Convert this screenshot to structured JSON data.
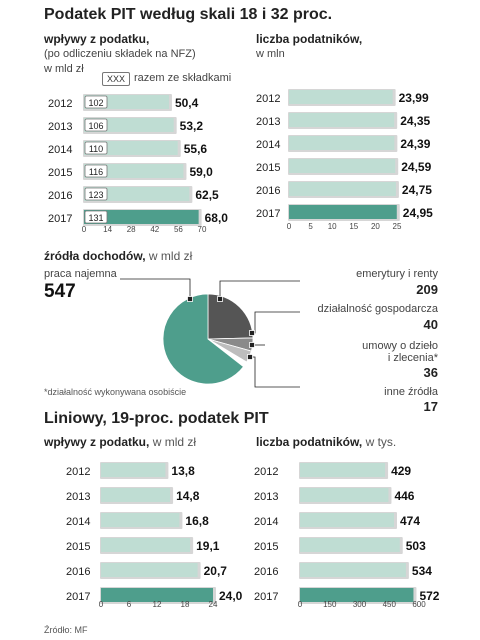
{
  "section1": {
    "title": "Podatek PIT według skali 18 i 32 proc.",
    "left_heading": "wpływy z podatku,",
    "left_note": "(po odliczeniu składek na NFZ)",
    "left_unit": "w mld zł",
    "legend_box": "XXX",
    "legend_label": "razem ze składkami",
    "right_heading": "liczba podatników,",
    "right_unit": "w mln"
  },
  "sources": {
    "heading": "źródła dochodów,",
    "unit": "w mld zł",
    "footnote": "*działalność wykonywana osobiście",
    "items": [
      {
        "label": "praca najemna",
        "value": "547"
      },
      {
        "label": "emerytury i renty",
        "value": "209"
      },
      {
        "label": "działalność gospodarcza",
        "value": "40"
      },
      {
        "label": "umowy o dzieło",
        "label2": "i zlecenia*",
        "value": "36"
      },
      {
        "label": "inne źródła",
        "value": "17"
      }
    ]
  },
  "section2": {
    "title": "Liniowy, 19-proc. podatek PIT",
    "left_heading": "wpływy z podatku,",
    "left_unit": "w mld zł",
    "right_heading": "liczba podatników,",
    "right_unit": "w tys."
  },
  "source_note": "Źródło: MF",
  "colors": {
    "teal": "#4e9e8c",
    "light": "#bfddd3",
    "dark": "#555555",
    "gray": "#8a8a8a",
    "lightgray": "#bdbdbd"
  },
  "chart_data": [
    {
      "type": "bar",
      "categories": [
        "2012",
        "2013",
        "2014",
        "2015",
        "2016",
        "2017"
      ],
      "values": [
        50.4,
        53.2,
        55.6,
        59.0,
        62.5,
        68.0
      ],
      "value_labels": [
        "50,4",
        "53,2",
        "55,6",
        "59,0",
        "62,5",
        "68,0"
      ],
      "with_contributions": [
        "102",
        "106",
        "110",
        "116",
        "123",
        "131"
      ],
      "xlim": [
        0,
        70
      ],
      "xticks": [
        "0",
        "14",
        "28",
        "42",
        "56",
        "70"
      ]
    },
    {
      "type": "bar",
      "categories": [
        "2012",
        "2013",
        "2014",
        "2015",
        "2016",
        "2017"
      ],
      "values": [
        23.99,
        24.35,
        24.39,
        24.59,
        24.75,
        24.95
      ],
      "value_labels": [
        "23,99",
        "24,35",
        "24,39",
        "24,59",
        "24,75",
        "24,95"
      ],
      "xlim": [
        0,
        25
      ],
      "xticks": [
        "0",
        "5",
        "10",
        "15",
        "20",
        "25"
      ]
    },
    {
      "type": "pie",
      "categories": [
        "praca najemna",
        "emerytury i renty",
        "działalność gospodarcza",
        "umowy o dzieło i zlecenia*",
        "inne źródła"
      ],
      "values": [
        547,
        209,
        40,
        36,
        17
      ]
    },
    {
      "type": "bar",
      "categories": [
        "2012",
        "2013",
        "2014",
        "2015",
        "2016",
        "2017"
      ],
      "values": [
        13.8,
        14.8,
        16.8,
        19.1,
        20.7,
        24.0
      ],
      "value_labels": [
        "13,8",
        "14,8",
        "16,8",
        "19,1",
        "20,7",
        "24,0"
      ],
      "xlim": [
        0,
        24
      ],
      "xticks": [
        "0",
        "6",
        "12",
        "18",
        "24"
      ]
    },
    {
      "type": "bar",
      "categories": [
        "2012",
        "2013",
        "2014",
        "2015",
        "2016",
        "2017"
      ],
      "values": [
        429,
        446,
        474,
        503,
        534,
        572
      ],
      "value_labels": [
        "429",
        "446",
        "474",
        "503",
        "534",
        "572"
      ],
      "xlim": [
        0,
        600
      ],
      "xticks": [
        "0",
        "150",
        "300",
        "450",
        "600"
      ]
    }
  ]
}
